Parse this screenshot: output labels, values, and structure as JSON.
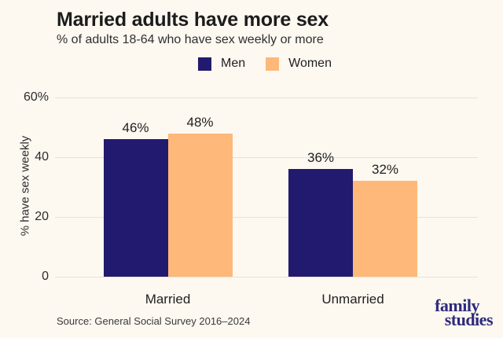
{
  "page": {
    "background": "#fdf8f0"
  },
  "header": {
    "title": "Married adults have more sex",
    "subtitle": "% of adults 18-64 who have sex weekly or more"
  },
  "chart_data": {
    "type": "bar",
    "title": "Married adults have more sex",
    "subtitle": "% of adults 18-64 who have sex weekly or more",
    "categories": [
      "Married",
      "Unmarried"
    ],
    "series": [
      {
        "name": "Men",
        "color": "#221a6e",
        "values": [
          46,
          36
        ]
      },
      {
        "name": "Women",
        "color": "#fdb87a",
        "values": [
          48,
          32
        ]
      }
    ],
    "value_labels": [
      [
        "46%",
        "48%"
      ],
      [
        "36%",
        "32%"
      ]
    ],
    "ylabel": "% have sex weekly",
    "ylim": [
      0,
      60
    ],
    "yticks": [
      {
        "value": 0,
        "label": "0"
      },
      {
        "value": 20,
        "label": "20"
      },
      {
        "value": 40,
        "label": "40"
      },
      {
        "value": 60,
        "label": "60%"
      }
    ],
    "grid": true,
    "legend_position": "top-center",
    "gridline_color": "#e6e2da"
  },
  "footer": {
    "source": "Source: General Social Survey 2016–2024",
    "logo_line1": "family",
    "logo_line2": "studies",
    "logo_color": "#2d2a7d"
  }
}
